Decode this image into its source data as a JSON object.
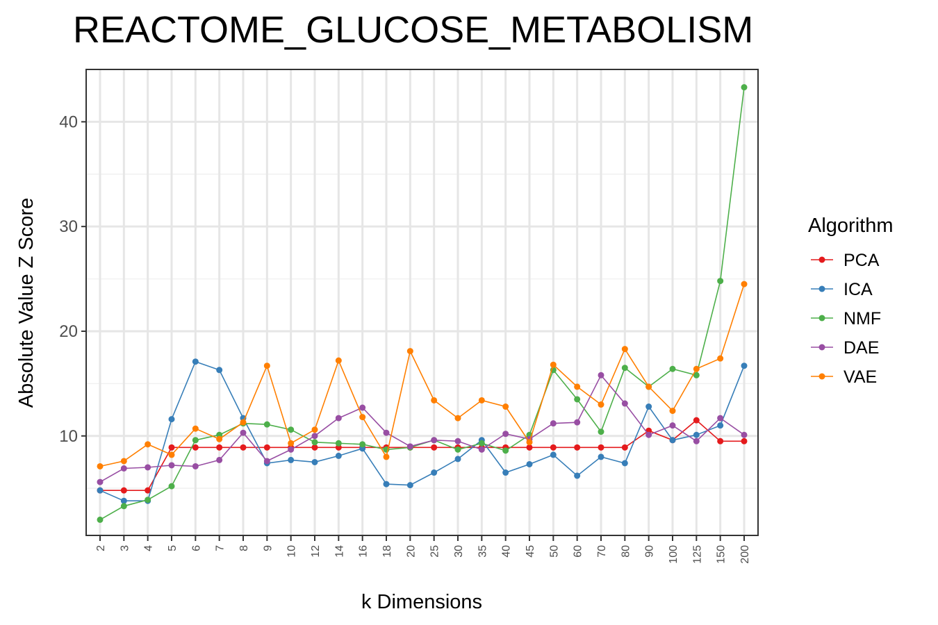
{
  "chart_data": {
    "type": "line",
    "title": "REACTOME_GLUCOSE_METABOLISM",
    "xlabel": "k Dimensions",
    "ylabel": "Absolute Value Z Score",
    "categories": [
      "2",
      "3",
      "4",
      "5",
      "6",
      "7",
      "8",
      "9",
      "10",
      "12",
      "14",
      "16",
      "18",
      "20",
      "25",
      "30",
      "35",
      "40",
      "45",
      "50",
      "60",
      "70",
      "80",
      "90",
      "100",
      "125",
      "150",
      "200"
    ],
    "ylim": [
      0.5,
      45
    ],
    "yticks": [
      10,
      20,
      30,
      40
    ],
    "grid": true,
    "legend": {
      "title": "Algorithm",
      "position": "right"
    },
    "series": [
      {
        "name": "PCA",
        "color": "#e41a1c",
        "values": [
          4.8,
          4.8,
          4.8,
          8.9,
          8.9,
          8.9,
          8.9,
          8.9,
          8.9,
          8.9,
          8.9,
          8.9,
          8.9,
          8.9,
          8.9,
          8.9,
          8.9,
          8.9,
          8.9,
          8.9,
          8.9,
          8.9,
          8.9,
          10.5,
          9.6,
          11.5,
          9.5,
          9.5
        ]
      },
      {
        "name": "ICA",
        "color": "#377eb8",
        "values": [
          4.8,
          3.8,
          3.8,
          11.6,
          17.1,
          16.3,
          11.7,
          7.4,
          7.7,
          7.5,
          8.1,
          8.8,
          5.4,
          5.3,
          6.5,
          7.8,
          9.6,
          6.5,
          7.3,
          8.2,
          6.2,
          8.0,
          7.4,
          12.8,
          9.6,
          10.1,
          11.0,
          16.7
        ]
      },
      {
        "name": "NMF",
        "color": "#4daf4a",
        "values": [
          2.0,
          3.3,
          3.9,
          5.2,
          9.6,
          10.1,
          11.2,
          11.1,
          10.6,
          9.4,
          9.3,
          9.2,
          8.7,
          8.9,
          9.6,
          8.7,
          9.3,
          8.6,
          10.1,
          16.3,
          13.5,
          10.4,
          16.5,
          14.7,
          16.4,
          15.8,
          24.8,
          43.3
        ]
      },
      {
        "name": "DAE",
        "color": "#984ea3",
        "values": [
          5.6,
          6.9,
          7.0,
          7.2,
          7.1,
          7.7,
          10.3,
          7.6,
          8.7,
          10.0,
          11.7,
          12.7,
          10.3,
          9.0,
          9.6,
          9.5,
          8.7,
          10.2,
          9.7,
          11.2,
          11.3,
          15.8,
          13.1,
          10.1,
          11.0,
          9.5,
          11.7,
          10.1
        ]
      },
      {
        "name": "VAE",
        "color": "#ff7f00",
        "values": [
          7.1,
          7.6,
          9.2,
          8.2,
          10.7,
          9.7,
          11.3,
          16.7,
          9.3,
          10.6,
          17.2,
          11.8,
          8.0,
          18.1,
          13.4,
          11.7,
          13.4,
          12.8,
          9.4,
          16.8,
          14.7,
          13.0,
          18.3,
          14.7,
          12.4,
          16.4,
          17.4,
          24.5
        ]
      }
    ]
  }
}
